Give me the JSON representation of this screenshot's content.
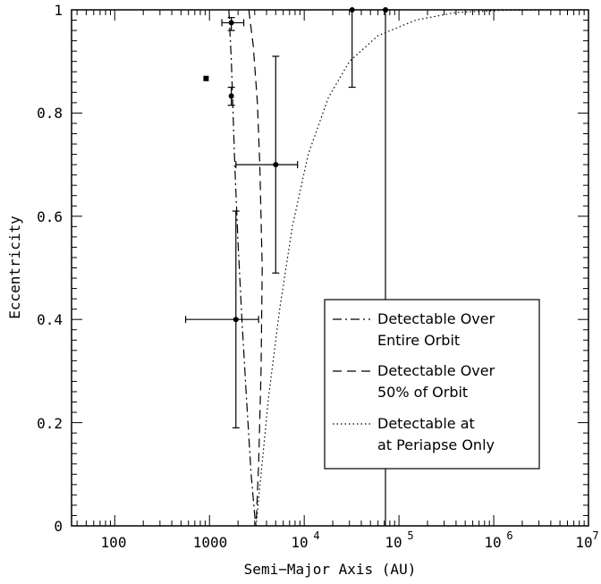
{
  "chart_data": {
    "type": "scatter",
    "title": "",
    "xlabel": "Semi−Major Axis (AU)",
    "ylabel": "Eccentricity",
    "x_scale": "log",
    "xlim": [
      35,
      10000000
    ],
    "ylim": [
      0,
      1
    ],
    "grid": false,
    "legend_position": "lower-right",
    "x_tick_labels": [
      "100",
      "1000",
      "10",
      "4",
      "10",
      "5",
      "10",
      "6",
      "10",
      "7"
    ],
    "y_tick_labels": [
      "0",
      "0.2",
      "0.4",
      "0.6",
      "0.8",
      "1"
    ],
    "points": [
      {
        "x": 920,
        "y": 0.867
      },
      {
        "x": 1700,
        "y": 0.975,
        "x_err": [
          1350,
          2300
        ],
        "y_err": [
          0.96,
          0.985
        ]
      },
      {
        "x": 1700,
        "y": 0.833,
        "y_err": [
          0.815,
          0.85
        ]
      },
      {
        "x": 1900,
        "y": 0.4,
        "x_err": [
          560,
          3300
        ],
        "y_err": [
          0.19,
          0.61
        ]
      },
      {
        "x": 5000,
        "y": 0.7,
        "x_err": [
          1900,
          8500
        ],
        "y_err": [
          0.49,
          0.91
        ]
      },
      {
        "x": 32000,
        "y": 1.0,
        "y_err": [
          0.85,
          1.0
        ]
      },
      {
        "x": 72000,
        "y": 1.0,
        "y_err": [
          0.0,
          1.0
        ]
      }
    ],
    "series": [
      {
        "name": "Detectable Over Entire Orbit",
        "style": "dash-dot",
        "x": [
          1600,
          1700,
          1850,
          2000,
          2200,
          2450,
          2750,
          3000,
          3100
        ],
        "y": [
          1.0,
          0.9,
          0.7,
          0.55,
          0.4,
          0.25,
          0.1,
          0.02,
          0.0
        ]
      },
      {
        "name": "Detectable Over 50% of Orbit",
        "style": "dashed",
        "x": [
          2600,
          2900,
          3200,
          3400,
          3600,
          3500,
          3300,
          3100
        ],
        "y": [
          1.0,
          0.93,
          0.82,
          0.7,
          0.5,
          0.3,
          0.12,
          0.0
        ]
      },
      {
        "name": "Detectable at at Periapse Only",
        "style": "dotted",
        "x": [
          3100,
          3500,
          4200,
          5500,
          7500,
          11000,
          18000,
          30000,
          60000,
          150000,
          400000,
          1200000,
          5000000
        ],
        "y": [
          0.0,
          0.1,
          0.25,
          0.42,
          0.58,
          0.72,
          0.83,
          0.9,
          0.95,
          0.98,
          0.995,
          0.999,
          1.0
        ]
      }
    ],
    "legend": [
      {
        "line1": "Detectable Over",
        "line2": "Entire Orbit",
        "style": "dash-dot"
      },
      {
        "line1": "Detectable Over",
        "line2": "50% of Orbit",
        "style": "dashed"
      },
      {
        "line1": "Detectable at",
        "line2": "at Periapse Only",
        "style": "dotted"
      }
    ]
  }
}
